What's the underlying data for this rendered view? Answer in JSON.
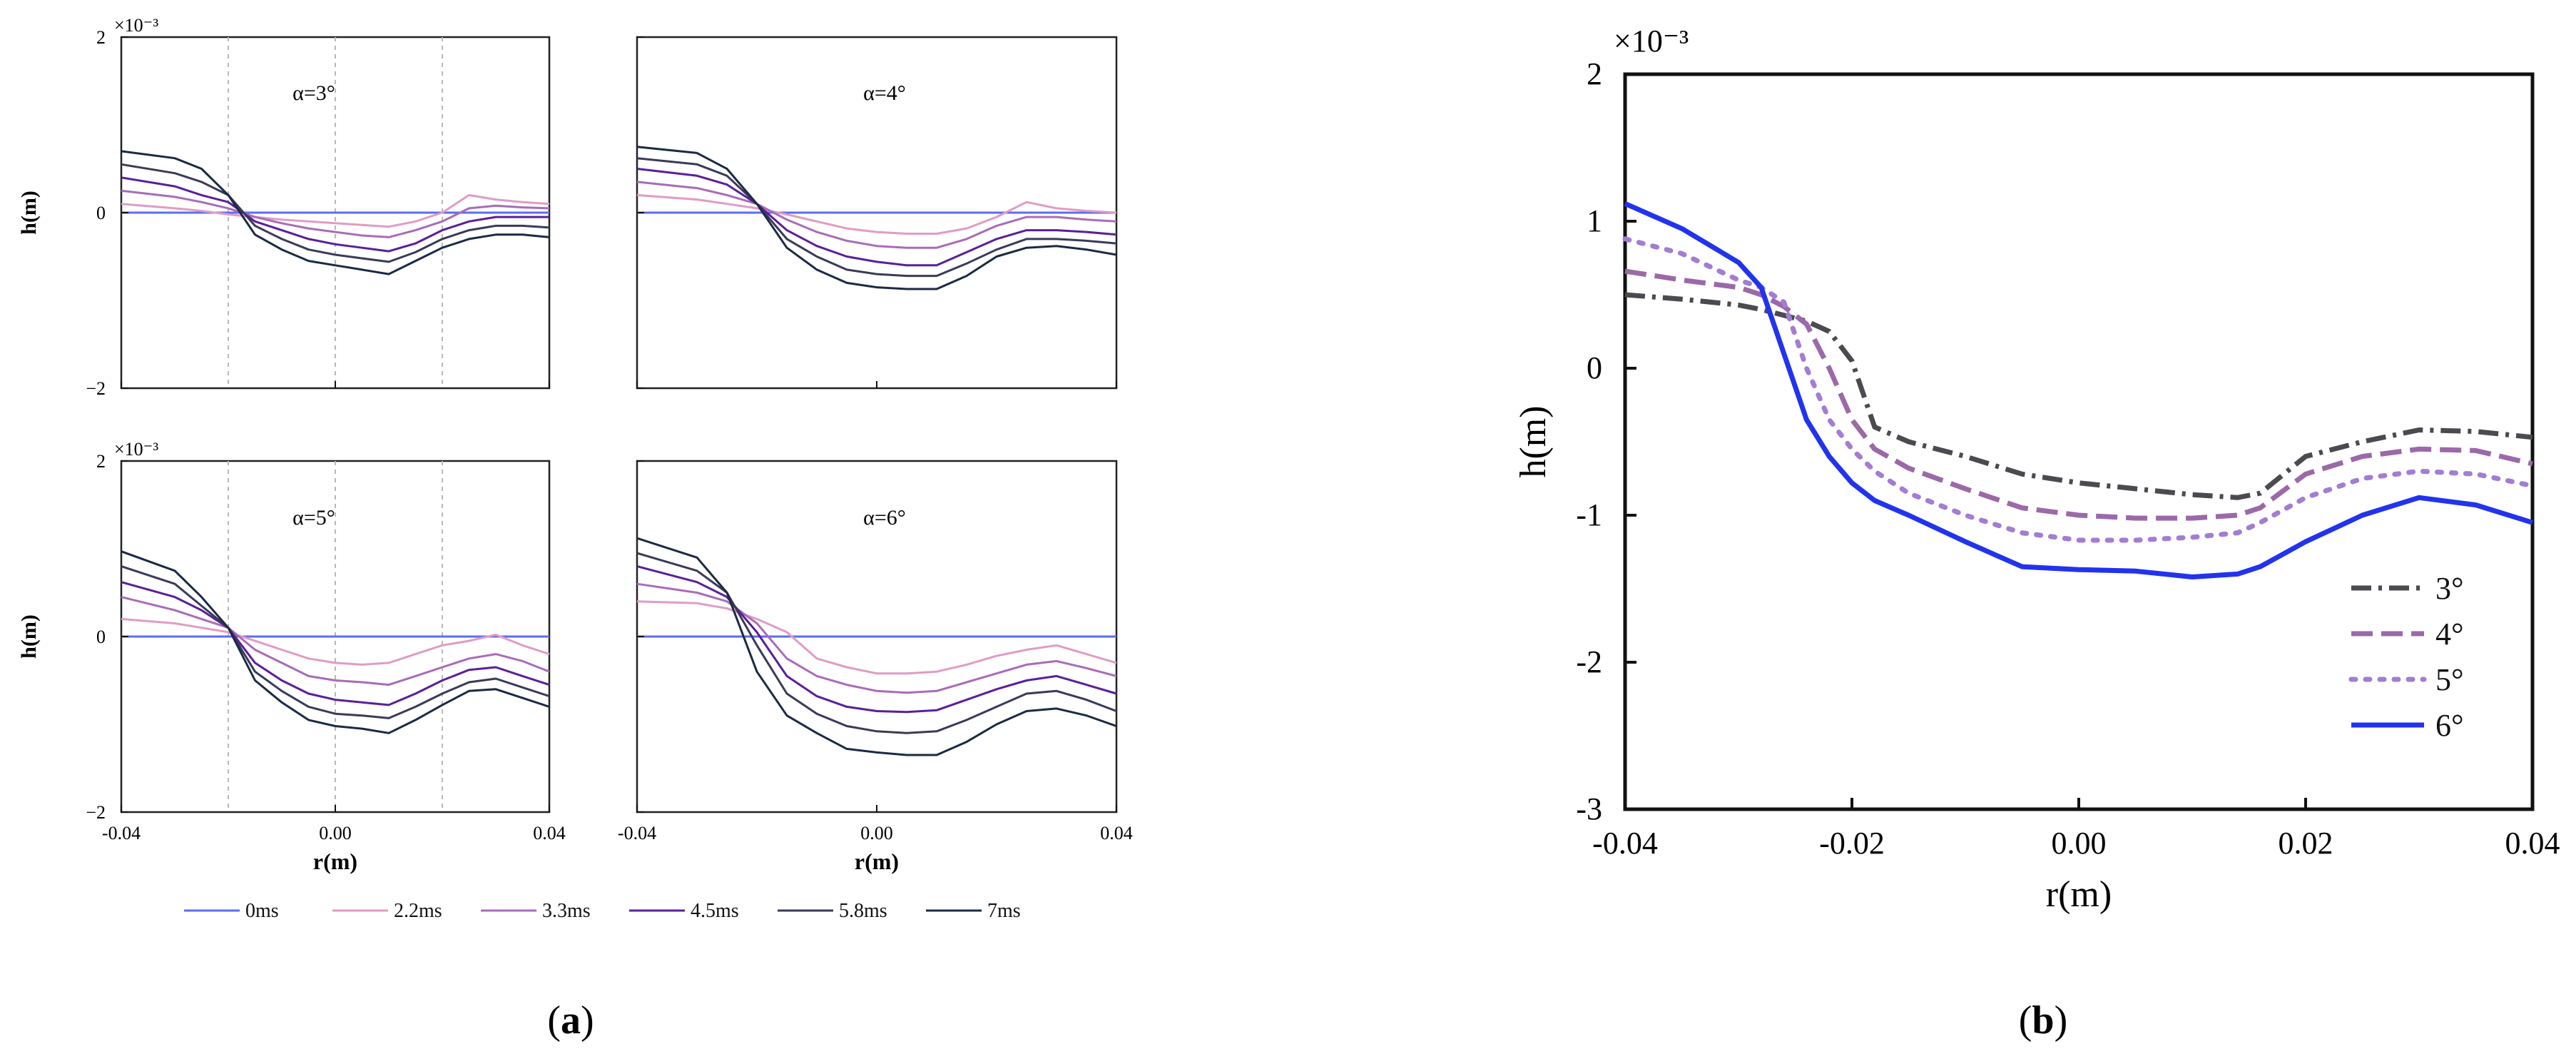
{
  "figure": {
    "panel_a_label": "a",
    "panel_b_label": "b",
    "legend_times": [
      {
        "label": "0ms",
        "color": "#5b6df0"
      },
      {
        "label": "2.2ms",
        "color": "#e09cc4"
      },
      {
        "label": "3.3ms",
        "color": "#a86cb8"
      },
      {
        "label": "4.5ms",
        "color": "#5a1f9a"
      },
      {
        "label": "5.8ms",
        "color": "#3a3a5a"
      },
      {
        "label": "7ms",
        "color": "#1b2a44"
      }
    ]
  },
  "chart_data": [
    {
      "type": "line",
      "id": "a1",
      "panel": "a",
      "title": "α=3°",
      "xlabel": "r(m)",
      "ylabel": "h(m)",
      "y_exponent_label": "×10⁻³",
      "xlim": [
        -0.04,
        0.04
      ],
      "ylim": [
        -2,
        2
      ],
      "xticks": [
        -0.04,
        0.0,
        0.04
      ],
      "xtick_labels": [
        "-0.04",
        "0.00",
        "0.04"
      ],
      "yticks": [
        -2,
        0,
        2
      ],
      "ytick_labels": [
        "−2",
        "0",
        "2"
      ],
      "vlines": [
        -0.02,
        0.0,
        0.02
      ],
      "x": [
        -0.04,
        -0.03,
        -0.025,
        -0.02,
        -0.015,
        -0.01,
        -0.005,
        0.0,
        0.005,
        0.01,
        0.015,
        0.02,
        0.025,
        0.03,
        0.035,
        0.04
      ],
      "series": [
        {
          "name": "0ms",
          "values": [
            0,
            0,
            0,
            0,
            0,
            0,
            0,
            0,
            0,
            0,
            0,
            0,
            0,
            0,
            0,
            0
          ]
        },
        {
          "name": "2.2ms",
          "values": [
            0.1,
            0.05,
            0.02,
            -0.02,
            -0.05,
            -0.08,
            -0.1,
            -0.12,
            -0.14,
            -0.16,
            -0.1,
            0.0,
            0.2,
            0.15,
            0.12,
            0.1
          ]
        },
        {
          "name": "3.3ms",
          "values": [
            0.25,
            0.18,
            0.12,
            0.05,
            -0.05,
            -0.12,
            -0.18,
            -0.22,
            -0.26,
            -0.28,
            -0.2,
            -0.1,
            0.05,
            0.08,
            0.06,
            0.05
          ]
        },
        {
          "name": "4.5ms",
          "values": [
            0.4,
            0.3,
            0.2,
            0.12,
            -0.1,
            -0.2,
            -0.3,
            -0.36,
            -0.4,
            -0.44,
            -0.35,
            -0.2,
            -0.1,
            -0.05,
            -0.05,
            -0.05
          ]
        },
        {
          "name": "5.8ms",
          "values": [
            0.55,
            0.45,
            0.35,
            0.2,
            -0.15,
            -0.3,
            -0.42,
            -0.48,
            -0.52,
            -0.56,
            -0.45,
            -0.3,
            -0.2,
            -0.15,
            -0.15,
            -0.17
          ]
        },
        {
          "name": "7ms",
          "values": [
            0.7,
            0.62,
            0.5,
            0.2,
            -0.25,
            -0.42,
            -0.55,
            -0.6,
            -0.65,
            -0.7,
            -0.55,
            -0.4,
            -0.3,
            -0.25,
            -0.25,
            -0.28
          ]
        }
      ]
    },
    {
      "type": "line",
      "id": "a2",
      "panel": "a",
      "title": "α=4°",
      "xlabel": "r(m)",
      "ylabel": "h(m)",
      "y_exponent_label": "",
      "xlim": [
        -0.04,
        0.04
      ],
      "ylim": [
        -2,
        2
      ],
      "xticks": [
        -0.04,
        0.0,
        0.04
      ],
      "xtick_labels": [
        "-0.04",
        "0.00",
        "0.04"
      ],
      "yticks": [
        -2,
        0,
        2
      ],
      "ytick_labels": [
        "",
        "",
        ""
      ],
      "vlines": [],
      "x": [
        -0.04,
        -0.03,
        -0.025,
        -0.02,
        -0.015,
        -0.01,
        -0.005,
        0.0,
        0.005,
        0.01,
        0.015,
        0.02,
        0.025,
        0.03,
        0.035,
        0.04
      ],
      "series": [
        {
          "name": "0ms",
          "values": [
            0,
            0,
            0,
            0,
            0,
            0,
            0,
            0,
            0,
            0,
            0,
            0,
            0,
            0,
            0,
            0
          ]
        },
        {
          "name": "2.2ms",
          "values": [
            0.2,
            0.15,
            0.1,
            0.05,
            -0.02,
            -0.1,
            -0.18,
            -0.22,
            -0.24,
            -0.24,
            -0.18,
            -0.05,
            0.12,
            0.05,
            0.02,
            0.0
          ]
        },
        {
          "name": "3.3ms",
          "values": [
            0.35,
            0.28,
            0.2,
            0.1,
            -0.08,
            -0.22,
            -0.32,
            -0.38,
            -0.4,
            -0.4,
            -0.3,
            -0.15,
            -0.05,
            -0.05,
            -0.08,
            -0.1
          ]
        },
        {
          "name": "4.5ms",
          "values": [
            0.5,
            0.42,
            0.32,
            0.1,
            -0.2,
            -0.38,
            -0.5,
            -0.56,
            -0.6,
            -0.6,
            -0.45,
            -0.3,
            -0.2,
            -0.2,
            -0.22,
            -0.25
          ]
        },
        {
          "name": "5.8ms",
          "values": [
            0.62,
            0.55,
            0.42,
            0.1,
            -0.3,
            -0.5,
            -0.65,
            -0.7,
            -0.72,
            -0.72,
            -0.58,
            -0.42,
            -0.3,
            -0.3,
            -0.32,
            -0.35
          ]
        },
        {
          "name": "7ms",
          "values": [
            0.75,
            0.68,
            0.5,
            0.1,
            -0.4,
            -0.65,
            -0.8,
            -0.85,
            -0.87,
            -0.87,
            -0.72,
            -0.5,
            -0.4,
            -0.38,
            -0.42,
            -0.48
          ]
        }
      ]
    },
    {
      "type": "line",
      "id": "a3",
      "panel": "a",
      "title": "α=5°",
      "xlabel": "r(m)",
      "ylabel": "h(m)",
      "y_exponent_label": "×10⁻³",
      "xlim": [
        -0.04,
        0.04
      ],
      "ylim": [
        -2,
        2
      ],
      "xticks": [
        -0.04,
        0.0,
        0.04
      ],
      "xtick_labels": [
        "-0.04",
        "0.00",
        "0.04"
      ],
      "yticks": [
        -2,
        0,
        2
      ],
      "ytick_labels": [
        "−2",
        "0",
        "2"
      ],
      "vlines": [
        -0.02,
        0.0,
        0.02
      ],
      "x": [
        -0.04,
        -0.03,
        -0.025,
        -0.02,
        -0.015,
        -0.01,
        -0.005,
        0.0,
        0.005,
        0.01,
        0.015,
        0.02,
        0.025,
        0.03,
        0.035,
        0.04
      ],
      "series": [
        {
          "name": "0ms",
          "values": [
            0,
            0,
            0,
            0,
            0,
            0,
            0,
            0,
            0,
            0,
            0,
            0,
            0,
            0,
            0,
            0
          ]
        },
        {
          "name": "2.2ms",
          "values": [
            0.2,
            0.15,
            0.1,
            0.05,
            -0.05,
            -0.15,
            -0.25,
            -0.3,
            -0.32,
            -0.3,
            -0.2,
            -0.1,
            -0.05,
            0.02,
            -0.1,
            -0.2
          ]
        },
        {
          "name": "3.3ms",
          "values": [
            0.45,
            0.3,
            0.2,
            0.1,
            -0.15,
            -0.3,
            -0.45,
            -0.5,
            -0.52,
            -0.55,
            -0.45,
            -0.35,
            -0.25,
            -0.2,
            -0.28,
            -0.4
          ]
        },
        {
          "name": "4.5ms",
          "values": [
            0.62,
            0.45,
            0.3,
            0.1,
            -0.3,
            -0.5,
            -0.65,
            -0.72,
            -0.75,
            -0.78,
            -0.65,
            -0.5,
            -0.38,
            -0.35,
            -0.45,
            -0.55
          ]
        },
        {
          "name": "5.8ms",
          "values": [
            0.8,
            0.6,
            0.35,
            0.1,
            -0.4,
            -0.62,
            -0.8,
            -0.88,
            -0.9,
            -0.93,
            -0.8,
            -0.65,
            -0.52,
            -0.48,
            -0.58,
            -0.68
          ]
        },
        {
          "name": "7ms",
          "values": [
            0.97,
            0.75,
            0.45,
            0.1,
            -0.5,
            -0.75,
            -0.95,
            -1.02,
            -1.05,
            -1.1,
            -0.95,
            -0.78,
            -0.62,
            -0.6,
            -0.7,
            -0.8
          ]
        }
      ]
    },
    {
      "type": "line",
      "id": "a4",
      "panel": "a",
      "title": "α=6°",
      "xlabel": "r(m)",
      "ylabel": "h(m)",
      "y_exponent_label": "",
      "xlim": [
        -0.04,
        0.04
      ],
      "ylim": [
        -2,
        2
      ],
      "xticks": [
        -0.04,
        0.0,
        0.04
      ],
      "xtick_labels": [
        "-0.04",
        "0.00",
        "0.04"
      ],
      "yticks": [
        -2,
        0,
        2
      ],
      "ytick_labels": [
        "",
        "",
        ""
      ],
      "vlines": [],
      "x": [
        -0.04,
        -0.03,
        -0.025,
        -0.02,
        -0.015,
        -0.01,
        -0.005,
        0.0,
        0.005,
        0.01,
        0.015,
        0.02,
        0.025,
        0.03,
        0.035,
        0.04
      ],
      "series": [
        {
          "name": "0ms",
          "values": [
            0,
            0,
            0,
            0,
            0,
            0,
            0,
            0,
            0,
            0,
            0,
            0,
            0,
            0,
            0,
            0
          ]
        },
        {
          "name": "2.2ms",
          "values": [
            0.4,
            0.38,
            0.32,
            0.2,
            0.05,
            -0.25,
            -0.35,
            -0.42,
            -0.42,
            -0.4,
            -0.32,
            -0.22,
            -0.15,
            -0.1,
            -0.2,
            -0.3
          ]
        },
        {
          "name": "3.3ms",
          "values": [
            0.6,
            0.5,
            0.4,
            0.15,
            -0.25,
            -0.45,
            -0.55,
            -0.62,
            -0.64,
            -0.62,
            -0.52,
            -0.42,
            -0.32,
            -0.28,
            -0.36,
            -0.45
          ]
        },
        {
          "name": "4.5ms",
          "values": [
            0.8,
            0.62,
            0.45,
            0.05,
            -0.45,
            -0.68,
            -0.8,
            -0.85,
            -0.86,
            -0.84,
            -0.72,
            -0.6,
            -0.5,
            -0.45,
            -0.55,
            -0.65
          ]
        },
        {
          "name": "5.8ms",
          "values": [
            0.95,
            0.75,
            0.5,
            -0.1,
            -0.65,
            -0.88,
            -1.02,
            -1.08,
            -1.1,
            -1.08,
            -0.95,
            -0.8,
            -0.65,
            -0.62,
            -0.72,
            -0.85
          ]
        },
        {
          "name": "7ms",
          "values": [
            1.12,
            0.9,
            0.5,
            -0.4,
            -0.9,
            -1.1,
            -1.28,
            -1.32,
            -1.35,
            -1.35,
            -1.2,
            -1.0,
            -0.85,
            -0.82,
            -0.9,
            -1.02
          ]
        }
      ]
    },
    {
      "type": "line",
      "id": "b",
      "panel": "b",
      "title": "",
      "xlabel": "r(m)",
      "ylabel": "h(m)",
      "y_exponent_label": "×10⁻³",
      "xlim": [
        -0.04,
        0.04
      ],
      "ylim": [
        -3,
        2
      ],
      "xticks": [
        -0.04,
        -0.02,
        0.0,
        0.02,
        0.04
      ],
      "xtick_labels": [
        "-0.04",
        "-0.02",
        "0.00",
        "0.02",
        "0.04"
      ],
      "yticks": [
        -3,
        -2,
        -1,
        0,
        1,
        2
      ],
      "ytick_labels": [
        "-3",
        "-2",
        "-1",
        "0",
        "1",
        "2"
      ],
      "legend_position": "bottom-right",
      "x": [
        -0.04,
        -0.035,
        -0.03,
        -0.028,
        -0.026,
        -0.024,
        -0.022,
        -0.02,
        -0.018,
        -0.015,
        -0.01,
        -0.005,
        0.0,
        0.005,
        0.01,
        0.014,
        0.016,
        0.02,
        0.025,
        0.03,
        0.035,
        0.04
      ],
      "series": [
        {
          "name": "3°",
          "values": [
            0.5,
            0.47,
            0.43,
            0.4,
            0.36,
            0.32,
            0.25,
            0.05,
            -0.4,
            -0.5,
            -0.6,
            -0.72,
            -0.78,
            -0.82,
            -0.86,
            -0.88,
            -0.85,
            -0.6,
            -0.5,
            -0.42,
            -0.43,
            -0.47
          ]
        },
        {
          "name": "4°",
          "values": [
            0.66,
            0.6,
            0.55,
            0.5,
            0.42,
            0.3,
            0.0,
            -0.35,
            -0.55,
            -0.68,
            -0.82,
            -0.95,
            -1.0,
            -1.02,
            -1.02,
            -1.0,
            -0.95,
            -0.72,
            -0.6,
            -0.55,
            -0.56,
            -0.65
          ]
        },
        {
          "name": "5°",
          "values": [
            0.88,
            0.78,
            0.6,
            0.55,
            0.45,
            0.0,
            -0.35,
            -0.55,
            -0.7,
            -0.85,
            -1.0,
            -1.12,
            -1.17,
            -1.17,
            -1.15,
            -1.12,
            -1.05,
            -0.88,
            -0.75,
            -0.7,
            -0.72,
            -0.8
          ]
        },
        {
          "name": "6°",
          "values": [
            1.12,
            0.95,
            0.72,
            0.55,
            0.1,
            -0.35,
            -0.6,
            -0.78,
            -0.9,
            -1.0,
            -1.18,
            -1.35,
            -1.37,
            -1.38,
            -1.42,
            -1.4,
            -1.35,
            -1.18,
            -1.0,
            -0.88,
            -0.93,
            -1.05
          ]
        }
      ],
      "series_styles": [
        {
          "name": "3°",
          "color": "#4a4a50",
          "dash": "28 10 5 10"
        },
        {
          "name": "4°",
          "color": "#9b69a8",
          "dash": "30 12"
        },
        {
          "name": "5°",
          "color": "#a27dd2",
          "dash": "6 14"
        },
        {
          "name": "6°",
          "color": "#2233ee",
          "dash": ""
        }
      ]
    }
  ]
}
